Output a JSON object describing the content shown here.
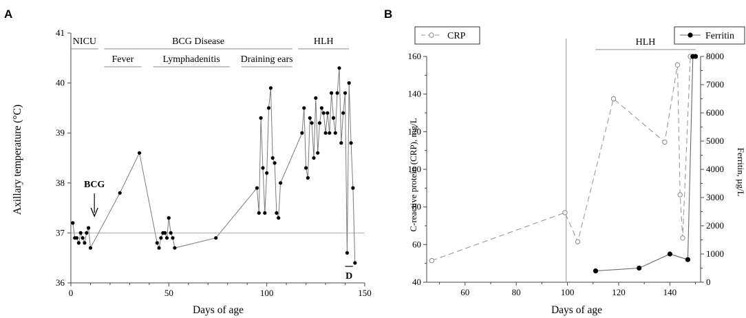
{
  "chart_data": [
    {
      "panel": "A",
      "type": "line",
      "xlabel": "Days of age",
      "ylabel": "Axillary temperature (°C)",
      "xlim": [
        0,
        150
      ],
      "ylim": [
        36,
        41
      ],
      "xticks": [
        0,
        50,
        100,
        150
      ],
      "yticks": [
        36,
        37,
        38,
        39,
        40,
        41
      ],
      "reference_line": 37,
      "series": [
        {
          "name": "Axillary temperature",
          "x": [
            1,
            2,
            3,
            4,
            5,
            6,
            7,
            8,
            9,
            10,
            25,
            35,
            44,
            45,
            46,
            47,
            48,
            49,
            50,
            51,
            52,
            53,
            74,
            95,
            96,
            97,
            98,
            99,
            100,
            101,
            102,
            103,
            104,
            105,
            106,
            107,
            118,
            119,
            120,
            121,
            122,
            123,
            124,
            125,
            126,
            127,
            128,
            129,
            130,
            131,
            132,
            133,
            134,
            135,
            136,
            137,
            138,
            139,
            140,
            141,
            142,
            143,
            144,
            145
          ],
          "y": [
            37.2,
            36.9,
            36.9,
            36.8,
            37.0,
            36.9,
            36.8,
            37.0,
            37.1,
            36.7,
            37.8,
            38.6,
            36.8,
            36.7,
            36.9,
            37.0,
            37.0,
            36.9,
            37.3,
            37.0,
            36.9,
            36.7,
            36.9,
            37.9,
            37.4,
            39.3,
            38.3,
            37.4,
            38.2,
            39.5,
            39.9,
            38.5,
            38.4,
            37.4,
            37.3,
            38.0,
            39.0,
            39.5,
            38.3,
            38.1,
            39.3,
            39.2,
            38.5,
            39.7,
            38.6,
            39.2,
            39.5,
            39.4,
            39.0,
            39.4,
            39.0,
            39.8,
            39.3,
            39.0,
            39.8,
            40.3,
            38.8,
            39.4,
            39.8,
            36.6,
            40.0,
            38.8,
            37.9,
            36.4
          ]
        }
      ],
      "annotations": {
        "periods": [
          {
            "label": "NICU",
            "start": 0,
            "end": 14,
            "level": 1
          },
          {
            "label": "BCG Disease",
            "start": 17,
            "end": 113,
            "level": 1
          },
          {
            "label": "HLH",
            "start": 116,
            "end": 142,
            "level": 1
          },
          {
            "label": "Fever",
            "start": 17,
            "end": 36,
            "level": 2
          },
          {
            "label": "Lymphadenitis",
            "start": 42,
            "end": 81,
            "level": 2
          },
          {
            "label": "Draining ears",
            "start": 87,
            "end": 113,
            "level": 2
          }
        ],
        "arrow": {
          "label": "BCG",
          "day": 12
        },
        "marker": {
          "label": "D",
          "start": 140,
          "end": 144
        }
      }
    },
    {
      "panel": "B",
      "type": "line",
      "xlabel": "Days of age",
      "ylabel": "C-reactive protein (CRP), mg/L",
      "y2label": "Ferritin, µg/L",
      "xlim": [
        45,
        152
      ],
      "ylim": [
        40,
        160
      ],
      "y2lim": [
        0,
        8000
      ],
      "xticks": [
        60,
        80,
        100,
        120,
        140
      ],
      "yticks": [
        40,
        60,
        80,
        100,
        120,
        140,
        160
      ],
      "y2ticks": [
        0,
        1000,
        2000,
        3000,
        4000,
        5000,
        6000,
        7000,
        8000
      ],
      "vertical_line": 99.5,
      "series": [
        {
          "name": "CRP",
          "axis": "left",
          "style": "dashed, open circles",
          "x": [
            47,
            99,
            104,
            118,
            138,
            143,
            144,
            145,
            148
          ],
          "y": [
            51.5,
            77,
            61.5,
            137.5,
            114.5,
            155.5,
            86.5,
            63.5,
            160
          ]
        },
        {
          "name": "Ferritin",
          "axis": "right",
          "style": "solid, filled circles",
          "x": [
            111,
            128,
            140,
            147,
            149,
            150
          ],
          "y": [
            400,
            500,
            1000,
            800,
            8000,
            8000
          ]
        }
      ],
      "legend": {
        "crp_label": "CRP",
        "ferritin_label": "Ferritin"
      },
      "annotations": {
        "periods": [
          {
            "label": "HLH",
            "start": 111,
            "end": 150
          }
        ]
      }
    }
  ]
}
